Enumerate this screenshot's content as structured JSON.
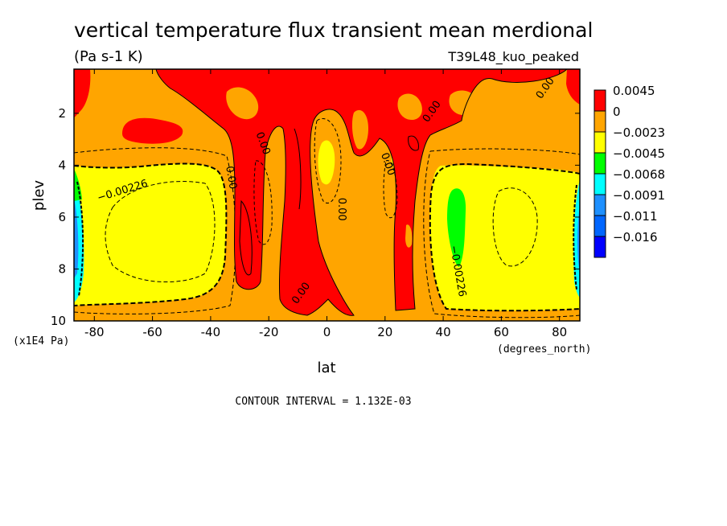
{
  "chart_data": {
    "type": "heatmap",
    "title": "vertical temperature flux transient mean merdional",
    "units": "(Pa s-1 K)",
    "run_label": "T39L48_kuo_peaked",
    "xlabel": "lat",
    "ylabel": "plev",
    "x_units": "(degrees_north)",
    "y_units": "(x1E4 Pa)",
    "footer": "CONTOUR INTERVAL = 1.132E-03",
    "xlim": [
      -87,
      87
    ],
    "ylim": [
      0.3,
      10
    ],
    "y_reversed": true,
    "x_ticks": [
      "-80",
      "-60",
      "-40",
      "-20",
      "0",
      "20",
      "40",
      "60",
      "80"
    ],
    "y_ticks": [
      "2",
      "4",
      "6",
      "8",
      "10"
    ],
    "legend": {
      "placement": "right",
      "entries": [
        {
          "label": "0.0045",
          "color": "#ff0000"
        },
        {
          "label": "0",
          "color": "#ffa500"
        },
        {
          "label": "−0.0023",
          "color": "#ffff00"
        },
        {
          "label": "−0.0045",
          "color": "#00ff00"
        },
        {
          "label": "−0.0068",
          "color": "#00ffff"
        },
        {
          "label": "−0.0091",
          "color": "#1e90ff"
        },
        {
          "label": "−0.011",
          "color": "#0066ff"
        },
        {
          "label": "−0.016",
          "color": "#0000ff"
        }
      ]
    },
    "contour_labels": [
      {
        "text": "−0.00226",
        "lat": -70,
        "plev": 5.1,
        "angle": -17
      },
      {
        "text": "0.00",
        "lat": -34,
        "plev": 4.5,
        "angle": 80
      },
      {
        "text": "0.00",
        "lat": -23,
        "plev": 3.2,
        "angle": 70
      },
      {
        "text": "0.00",
        "lat": 4,
        "plev": 5.7,
        "angle": 90
      },
      {
        "text": "0.00",
        "lat": 20,
        "plev": 4.0,
        "angle": 70
      },
      {
        "text": "0.00",
        "lat": -8,
        "plev": 9.0,
        "angle": -55
      },
      {
        "text": "0.00",
        "lat": 37,
        "plev": 2.0,
        "angle": -55
      },
      {
        "text": "0.00",
        "lat": 76,
        "plev": 1.1,
        "angle": -55
      },
      {
        "text": "−0.00226",
        "lat": 44,
        "plev": 8.1,
        "angle": 80
      }
    ]
  }
}
